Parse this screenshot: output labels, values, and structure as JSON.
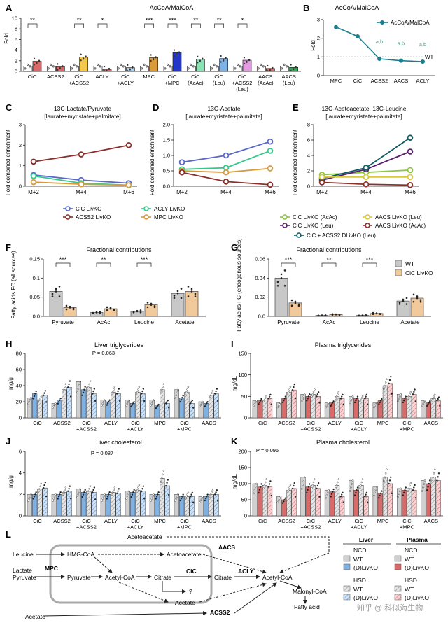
{
  "colors": {
    "teal": "#1a7f8c",
    "green_lbl": "#4a9d8c",
    "blue": "#5a67c8",
    "darkred": "#8b2f2a",
    "mint": "#33c98a",
    "orange": "#d99a3c",
    "lime": "#8cc63f",
    "purple": "#5a1d6b",
    "yellow": "#d9c93c",
    "darkteal": "#0f5b63",
    "wt_gray": "#c8c8c8",
    "ko_orange": "#f2c99a",
    "ko_blue": "#7fb1e3",
    "ko_pink": "#f2a3a8",
    "bar_red": "#d96a6a"
  },
  "panels": {
    "A": {
      "letter": "A",
      "title": "AcCoA/MalCoA",
      "ylabel": "Fold",
      "sig": [
        "**",
        "**",
        "*",
        "***",
        "***",
        "**",
        "**",
        "*"
      ],
      "groups": [
        "CiC",
        "ACSS2",
        "CiC +ACSS2",
        "ACLY",
        "CiC +ACLY",
        "MPC",
        "CiC +MPC",
        "CiC (AcAc)",
        "CiC (Leu)",
        "CiC +ACSS2 (Leu)",
        "AACS (AcAc)",
        "AACS (Leu)"
      ]
    },
    "B": {
      "letter": "B",
      "title": "AcCoA/MalCoA",
      "ylabel": "Fold",
      "legend": "AcCoA/MalCoA",
      "wt": "WT",
      "sig_label": "a,b"
    },
    "C": {
      "letter": "C",
      "title": "13C-Lactate/Pyruvate",
      "subtitle": "[laurate+myristate+palmitate]",
      "ylabel": "Fold combined enrichment"
    },
    "D": {
      "letter": "D",
      "title": "13C-Acetate",
      "subtitle": "[laurate+myristate+palmitate]",
      "ylabel": "Fold combined enrichment"
    },
    "E": {
      "letter": "E",
      "title": "13C-Acetoacetate, 13C-Leucine",
      "subtitle": "[laurate+myristate+palmitate]",
      "ylabel": "Fold combined enrichment"
    },
    "legendCD": [
      "CiC LivKO",
      "ACLY LivKO",
      "ACSS2 LivKO",
      "MPC LivKO"
    ],
    "legendE": [
      "CiC LivKO (AcAc)",
      "AACS LivKO (Leu)",
      "CiC LivKO (Leu)",
      "AACS LivKO (AcAc)",
      "CiC + ACSS2 DLivKO (Leu)"
    ],
    "F": {
      "letter": "F",
      "title": "Fractional contributions",
      "ylabel": "Fatty acids FC (all sources)"
    },
    "G": {
      "letter": "G",
      "title": "Fractional contributions",
      "ylabel": "Fatty acids FC (endogenous sources)",
      "legend": [
        "WT",
        "CiC LivKO"
      ]
    },
    "H": {
      "letter": "H",
      "title": "Liver triglycerides",
      "ylabel": "mg/g",
      "pval": "P = 0.063"
    },
    "I": {
      "letter": "I",
      "title": "Plasma triglycerides",
      "ylabel": "mg/dL"
    },
    "J": {
      "letter": "J",
      "title": "Liver cholesterol",
      "ylabel": "mg/g",
      "pval": "P = 0.087"
    },
    "K": {
      "letter": "K",
      "title": "Plasma cholesterol",
      "ylabel": "mg/dL",
      "pval": "P = 0.096"
    },
    "L": {
      "letter": "L"
    }
  },
  "chart_data": [
    {
      "panel": "A",
      "type": "bar",
      "title": "AcCoA/MalCoA",
      "ylabel": "Fold",
      "ylim": [
        0,
        10
      ],
      "yticks": [
        0,
        2,
        4,
        6,
        8,
        10
      ],
      "series": [
        {
          "name": "WT",
          "values": [
            1.0,
            1.0,
            1.0,
            1.0,
            1.0,
            1.0,
            1.0,
            1.0,
            1.0,
            1.0,
            1.0,
            1.0
          ]
        },
        {
          "name": "KO",
          "values": [
            1.9,
            0.9,
            2.7,
            0.4,
            0.7,
            2.6,
            3.5,
            2.3,
            2.4,
            2.1,
            0.55,
            0.75
          ]
        }
      ]
    },
    {
      "panel": "B",
      "type": "line",
      "title": "AcCoA/MalCoA",
      "ylabel": "Fold",
      "categories": [
        "MPC",
        "CiC",
        "ACSS2",
        "AACS",
        "ACLY"
      ],
      "values": [
        2.6,
        2.1,
        0.9,
        0.8,
        0.75
      ],
      "ylim": [
        0,
        3
      ],
      "wt_line": 1
    },
    {
      "panel": "C",
      "type": "line",
      "ylim": [
        0,
        3
      ],
      "yticks": [
        0,
        1,
        2,
        3
      ],
      "x": [
        "M+2",
        "M+4",
        "M+6"
      ],
      "series": [
        {
          "name": "CiC LivKO",
          "values": [
            0.55,
            0.3,
            0.15
          ]
        },
        {
          "name": "ACSS2 LivKO",
          "values": [
            1.2,
            1.55,
            2.0
          ]
        },
        {
          "name": "ACLY LivKO",
          "values": [
            0.5,
            0.15,
            0.05
          ]
        },
        {
          "name": "MPC LivKO",
          "values": [
            0.2,
            0.1,
            0.05
          ]
        }
      ]
    },
    {
      "panel": "D",
      "type": "line",
      "ylim": [
        0,
        2
      ],
      "yticks": [
        0,
        0.5,
        1.0,
        1.5,
        2.0
      ],
      "x": [
        "M+2",
        "M+4",
        "M+6"
      ],
      "series": [
        {
          "name": "CiC LivKO",
          "values": [
            0.78,
            1.0,
            1.45
          ]
        },
        {
          "name": "ACLY LivKO",
          "values": [
            0.55,
            0.6,
            1.15
          ]
        },
        {
          "name": "MPC LivKO",
          "values": [
            0.5,
            0.45,
            0.58
          ]
        },
        {
          "name": "ACSS2 LivKO",
          "values": [
            0.45,
            0.15,
            0.05
          ]
        }
      ]
    },
    {
      "panel": "E",
      "type": "line",
      "ylim": [
        0,
        8
      ],
      "yticks": [
        0,
        2,
        4,
        6,
        8
      ],
      "x": [
        "M+2",
        "M+4",
        "M+6"
      ],
      "series": [
        {
          "name": "CiC LivKO (AcAc)",
          "values": [
            1.5,
            1.8,
            2.1
          ]
        },
        {
          "name": "CiC LivKO (Leu)",
          "values": [
            0.8,
            2.2,
            4.5
          ]
        },
        {
          "name": "CiC + ACSS2 DLivKO (Leu)",
          "values": [
            1.0,
            2.4,
            6.3
          ]
        },
        {
          "name": "AACS LivKO (Leu)",
          "values": [
            1.2,
            1.2,
            1.2
          ]
        },
        {
          "name": "AACS LivKO (AcAc)",
          "values": [
            0.5,
            0.25,
            0.15
          ]
        }
      ]
    },
    {
      "panel": "F",
      "type": "bar",
      "ylim": [
        0,
        0.15
      ],
      "yticks": [
        0.0,
        0.05,
        0.1,
        0.15
      ],
      "categories": [
        "Pyruvate",
        "AcAc",
        "Leucine",
        "Acetate"
      ],
      "series": [
        {
          "name": "WT",
          "values": [
            0.065,
            0.01,
            0.013,
            0.06
          ]
        },
        {
          "name": "CiC LivKO",
          "values": [
            0.023,
            0.02,
            0.03,
            0.065
          ]
        }
      ],
      "sig": [
        "***",
        "**",
        "***",
        ""
      ]
    },
    {
      "panel": "G",
      "type": "bar",
      "ylim": [
        0,
        0.06
      ],
      "yticks": [
        0.0,
        0.02,
        0.04,
        0.06
      ],
      "categories": [
        "Pyruvate",
        "AcAc",
        "Leucine",
        "Acetate"
      ],
      "series": [
        {
          "name": "WT",
          "values": [
            0.04,
            0.001,
            0.001,
            0.016
          ]
        },
        {
          "name": "CiC LivKO",
          "values": [
            0.014,
            0.002,
            0.003,
            0.019
          ]
        }
      ],
      "sig": [
        "***",
        "**",
        "***",
        ""
      ]
    },
    {
      "panel": "H",
      "type": "bar",
      "ylim": [
        0,
        80
      ],
      "yticks": [
        0,
        20,
        40,
        60,
        80
      ],
      "categories": [
        "CiC",
        "ACSS2",
        "CiC +ACSS2",
        "ACLY",
        "CiC +ACLY",
        "MPC",
        "CiC +MPC",
        "AACS"
      ],
      "series": [
        {
          "name": "NCD WT",
          "values": [
            25,
            18,
            45,
            22,
            22,
            22,
            35,
            20
          ]
        },
        {
          "name": "NCD KO",
          "values": [
            30,
            22,
            35,
            20,
            18,
            15,
            25,
            18
          ]
        },
        {
          "name": "HSD WT",
          "values": [
            22,
            35,
            38,
            32,
            32,
            35,
            32,
            28
          ]
        },
        {
          "name": "HSD KO",
          "values": [
            28,
            38,
            30,
            30,
            30,
            18,
            18,
            30
          ]
        }
      ]
    },
    {
      "panel": "I",
      "type": "bar",
      "ylim": [
        0,
        150
      ],
      "yticks": [
        0,
        50,
        100,
        150
      ],
      "categories": [
        "CiC",
        "ACSS2",
        "CiC +ACSS2",
        "ACLY",
        "CiC +ACLY",
        "MPC",
        "CiC +MPC",
        "AACS"
      ],
      "series": [
        {
          "name": "NCD WT",
          "values": [
            40,
            35,
            55,
            35,
            50,
            35,
            55,
            40
          ]
        },
        {
          "name": "NCD KO",
          "values": [
            40,
            45,
            50,
            35,
            45,
            40,
            45,
            35
          ]
        },
        {
          "name": "HSD WT",
          "values": [
            42,
            60,
            55,
            50,
            42,
            75,
            50,
            45
          ]
        },
        {
          "name": "HSD KO",
          "values": [
            45,
            65,
            50,
            45,
            45,
            80,
            55,
            40
          ]
        }
      ]
    },
    {
      "panel": "J",
      "type": "bar",
      "ylim": [
        0,
        6
      ],
      "yticks": [
        0,
        2,
        4,
        6
      ],
      "categories": [
        "CiC",
        "ACSS2",
        "CiC +ACSS2",
        "ACLY",
        "CiC +ACLY",
        "MPC",
        "CiC +MPC",
        "AACS"
      ],
      "series": [
        {
          "name": "NCD WT",
          "values": [
            2.0,
            2.0,
            2.5,
            2.0,
            2.3,
            2.0,
            2.0,
            1.8
          ]
        },
        {
          "name": "NCD KO",
          "values": [
            2.0,
            2.0,
            2.2,
            2.0,
            2.2,
            2.0,
            1.8,
            1.8
          ]
        },
        {
          "name": "HSD WT",
          "values": [
            2.5,
            2.2,
            2.3,
            2.2,
            2.4,
            3.5,
            1.8,
            2.0
          ]
        },
        {
          "name": "HSD KO",
          "values": [
            2.6,
            2.3,
            2.2,
            2.1,
            2.3,
            2.8,
            1.8,
            2.0
          ]
        }
      ]
    },
    {
      "panel": "K",
      "type": "bar",
      "ylim": [
        0,
        200
      ],
      "yticks": [
        0,
        50,
        100,
        150,
        200
      ],
      "categories": [
        "CiC",
        "ACSS2",
        "CiC +ACSS2",
        "ACLY",
        "CiC +ACLY",
        "MPC",
        "CiC +MPC",
        "AACS"
      ],
      "series": [
        {
          "name": "NCD WT",
          "values": [
            100,
            60,
            120,
            80,
            110,
            90,
            85,
            110
          ]
        },
        {
          "name": "NCD KO",
          "values": [
            90,
            50,
            90,
            75,
            80,
            70,
            80,
            100
          ]
        },
        {
          "name": "HSD WT",
          "values": [
            95,
            80,
            95,
            95,
            95,
            120,
            85,
            120
          ]
        },
        {
          "name": "HSD KO",
          "values": [
            90,
            85,
            85,
            60,
            60,
            100,
            80,
            110
          ]
        }
      ]
    }
  ],
  "diagram": {
    "nodes": {
      "leucine": "Leucine",
      "hmgcoa": "HMG-CoA",
      "lactate": "Lactate",
      "pyruvate_in": "Pyruvate",
      "pyruvate": "Pyruvate",
      "acetylcoa": "Acetyl-CoA",
      "citrate": "Citrate",
      "citrate_out": "Citrate",
      "acetylcoa_out": "Acetyl-CoA",
      "acetoacetate_top": "Acetoacetate",
      "acetoacetate_mid": "Acetoacetate",
      "acetate_in": "Acetate",
      "acetate": "Acetate",
      "malonylcoa": "Malonyl-CoA",
      "fattyacid": "Fatty acid",
      "question": "?"
    },
    "enzymes": {
      "mpc": "MPC",
      "cic": "CiC",
      "acly": "ACLY",
      "aacs": "AACS",
      "acss2": "ACSS2"
    },
    "legend": {
      "liver": "Liver",
      "plasma": "Plasma",
      "ncd": "NCD",
      "hsd": "HSD",
      "wt": "WT",
      "ko": "(D)LivKO"
    },
    "watermark": "知乎 @ 科似海生物"
  }
}
